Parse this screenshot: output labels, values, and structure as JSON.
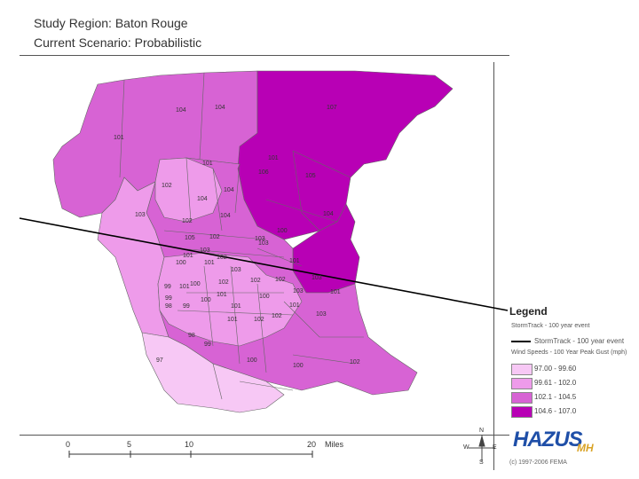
{
  "header": {
    "title": "Study Region: Baton Rouge",
    "subtitle": "Current Scenario: Probabilistic"
  },
  "legend": {
    "title": "Legend",
    "storm_point_label": "StormTrack - 100 year event",
    "storm_line_label": "StormTrack - 100 year event",
    "wind_title": "Wind Speeds - 100 Year Peak Gust (mph)",
    "classes": [
      {
        "label": "97.00 - 99.60",
        "color": "#f7c8f5"
      },
      {
        "label": "99.61 - 102.0",
        "color": "#ee9bea"
      },
      {
        "label": "102.1 - 104.5",
        "color": "#d763d4"
      },
      {
        "label": "104.6 - 107.0",
        "color": "#b800b5"
      }
    ]
  },
  "scale": {
    "ticks": [
      "0",
      "5",
      "10",
      "20"
    ],
    "unit": "Miles"
  },
  "compass": {
    "n": "N",
    "s": "S",
    "e": "E",
    "w": "W"
  },
  "logo": {
    "main": "HAZUS",
    "suffix": "MH"
  },
  "credit": "(c) 1997-2006 FEMA",
  "map_labels": [
    "104",
    "104",
    "107",
    "101",
    "101",
    "102",
    "104",
    "106",
    "105",
    "104",
    "104",
    "103",
    "101",
    "102",
    "104",
    "100",
    "105",
    "102",
    "103",
    "103",
    "101",
    "102",
    "103",
    "101",
    "100",
    "101",
    "103",
    "102",
    "102",
    "103",
    "101",
    "102",
    "103",
    "99",
    "100",
    "101",
    "99",
    "100",
    "101",
    "100",
    "101",
    "101",
    "98",
    "99",
    "101",
    "102",
    "102",
    "103",
    "97",
    "99",
    "100",
    "100",
    "102",
    "98"
  ]
}
